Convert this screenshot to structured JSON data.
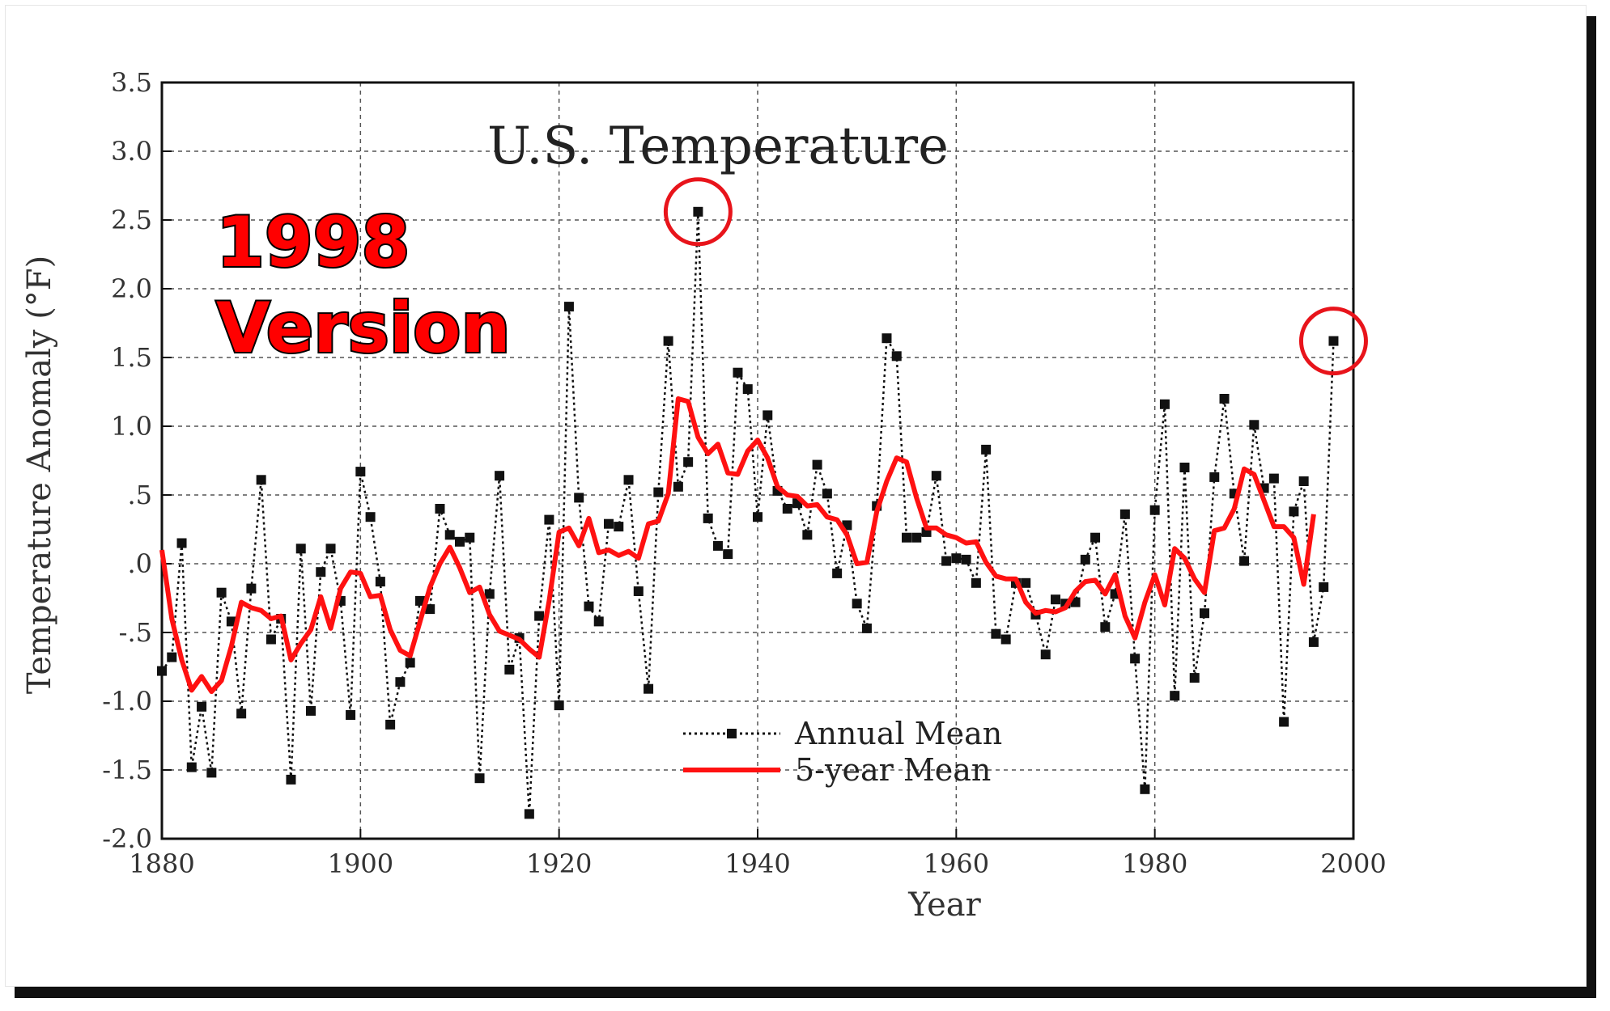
{
  "overlay": {
    "line1": "1998",
    "line2": "Version"
  },
  "chart_data": {
    "type": "line",
    "title": "U.S. Temperature",
    "xlabel": "Year",
    "ylabel": "Temperature Anomaly (°F)",
    "xlim": [
      1880,
      2000
    ],
    "ylim": [
      -2.0,
      3.5
    ],
    "x_ticks": [
      1880,
      1900,
      1920,
      1940,
      1960,
      1980,
      2000
    ],
    "x_tick_labels": [
      "1880",
      "1900",
      "1920",
      "1940",
      "1960",
      "1980",
      "2000"
    ],
    "y_ticks": [
      -2.0,
      -1.5,
      -1.0,
      -0.5,
      0.0,
      0.5,
      1.0,
      1.5,
      2.0,
      2.5,
      3.0,
      3.5
    ],
    "y_tick_labels": [
      "-2.0",
      "-1.5",
      "-1.0",
      "-.5",
      ".0",
      ".5",
      "1.0",
      "1.5",
      "2.0",
      "2.5",
      "3.0",
      "3.5"
    ],
    "grid": true,
    "legend_position": "bottom-center",
    "series": [
      {
        "name": "Annual Mean",
        "style": "dotted-with-square-markers",
        "color": "#111111",
        "x": [
          1880,
          1881,
          1882,
          1883,
          1884,
          1885,
          1886,
          1887,
          1888,
          1889,
          1890,
          1891,
          1892,
          1893,
          1894,
          1895,
          1896,
          1897,
          1898,
          1899,
          1900,
          1901,
          1902,
          1903,
          1904,
          1905,
          1906,
          1907,
          1908,
          1909,
          1910,
          1911,
          1912,
          1913,
          1914,
          1915,
          1916,
          1917,
          1918,
          1919,
          1920,
          1921,
          1922,
          1923,
          1924,
          1925,
          1926,
          1927,
          1928,
          1929,
          1930,
          1931,
          1932,
          1933,
          1934,
          1935,
          1936,
          1937,
          1938,
          1939,
          1940,
          1941,
          1942,
          1943,
          1944,
          1945,
          1946,
          1947,
          1948,
          1949,
          1950,
          1951,
          1952,
          1953,
          1954,
          1955,
          1956,
          1957,
          1958,
          1959,
          1960,
          1961,
          1962,
          1963,
          1964,
          1965,
          1966,
          1967,
          1968,
          1969,
          1970,
          1971,
          1972,
          1973,
          1974,
          1975,
          1976,
          1977,
          1978,
          1979,
          1980,
          1981,
          1982,
          1983,
          1984,
          1985,
          1986,
          1987,
          1988,
          1989,
          1990,
          1991,
          1992,
          1993,
          1994,
          1995,
          1996,
          1997,
          1998
        ],
        "values": [
          -0.78,
          -0.68,
          0.15,
          -1.48,
          -1.04,
          -1.52,
          -0.21,
          -0.42,
          -1.09,
          -0.18,
          0.61,
          -0.55,
          -0.4,
          -1.57,
          0.11,
          -1.07,
          -0.06,
          0.11,
          -0.27,
          -1.1,
          0.67,
          0.34,
          -0.13,
          -1.17,
          -0.86,
          -0.72,
          -0.27,
          -0.33,
          0.4,
          0.21,
          0.16,
          0.19,
          -1.56,
          -0.22,
          0.64,
          -0.77,
          -0.54,
          -1.82,
          -0.38,
          0.32,
          -1.03,
          1.87,
          0.48,
          -0.31,
          -0.42,
          0.29,
          0.27,
          0.61,
          -0.2,
          -0.91,
          0.52,
          1.62,
          0.56,
          0.74,
          2.56,
          0.33,
          0.13,
          0.07,
          1.39,
          1.27,
          0.34,
          1.08,
          0.53,
          0.4,
          0.44,
          0.21,
          0.72,
          0.51,
          -0.07,
          0.28,
          -0.29,
          -0.47,
          0.42,
          1.64,
          1.51,
          0.19,
          0.19,
          0.23,
          0.64,
          0.02,
          0.04,
          0.03,
          -0.14,
          0.83,
          -0.51,
          -0.55,
          -0.14,
          -0.14,
          -0.37,
          -0.66,
          -0.26,
          -0.29,
          -0.28,
          0.03,
          0.19,
          -0.46,
          -0.22,
          0.36,
          -0.69,
          -1.64,
          0.39,
          1.16,
          -0.96,
          0.7,
          -0.83,
          -0.36,
          0.63,
          1.2,
          0.51,
          0.02,
          1.01,
          0.55,
          0.62,
          -1.15,
          0.38,
          0.6,
          -0.57,
          -0.17,
          1.62
        ]
      },
      {
        "name": "5-year Mean",
        "style": "solid",
        "color": "#ff1111",
        "x": [
          1880,
          1881,
          1882,
          1883,
          1884,
          1885,
          1886,
          1887,
          1888,
          1889,
          1890,
          1891,
          1892,
          1893,
          1894,
          1895,
          1896,
          1897,
          1898,
          1899,
          1900,
          1901,
          1902,
          1903,
          1904,
          1905,
          1906,
          1907,
          1908,
          1909,
          1910,
          1911,
          1912,
          1913,
          1914,
          1915,
          1916,
          1917,
          1918,
          1919,
          1920,
          1921,
          1922,
          1923,
          1924,
          1925,
          1926,
          1927,
          1928,
          1929,
          1930,
          1931,
          1932,
          1933,
          1934,
          1935,
          1936,
          1937,
          1938,
          1939,
          1940,
          1941,
          1942,
          1943,
          1944,
          1945,
          1946,
          1947,
          1948,
          1949,
          1950,
          1951,
          1952,
          1953,
          1954,
          1955,
          1956,
          1957,
          1958,
          1959,
          1960,
          1961,
          1962,
          1963,
          1964,
          1965,
          1966,
          1967,
          1968,
          1969,
          1970,
          1971,
          1972,
          1973,
          1974,
          1975,
          1976,
          1977,
          1978,
          1979,
          1980,
          1981,
          1982,
          1983,
          1984,
          1985,
          1986,
          1987,
          1988,
          1989,
          1990,
          1991,
          1992,
          1993,
          1994,
          1995,
          1996
        ],
        "values": [
          0.1,
          -0.4,
          -0.7,
          -0.92,
          -0.82,
          -0.93,
          -0.85,
          -0.6,
          -0.28,
          -0.32,
          -0.34,
          -0.4,
          -0.38,
          -0.7,
          -0.58,
          -0.48,
          -0.24,
          -0.47,
          -0.18,
          -0.06,
          -0.07,
          -0.24,
          -0.23,
          -0.48,
          -0.63,
          -0.67,
          -0.42,
          -0.17,
          0.0,
          0.12,
          -0.03,
          -0.21,
          -0.17,
          -0.37,
          -0.49,
          -0.52,
          -0.55,
          -0.62,
          -0.68,
          -0.27,
          0.23,
          0.26,
          0.13,
          0.33,
          0.08,
          0.1,
          0.06,
          0.09,
          0.04,
          0.29,
          0.31,
          0.51,
          1.2,
          1.18,
          0.92,
          0.8,
          0.87,
          0.66,
          0.65,
          0.82,
          0.9,
          0.77,
          0.56,
          0.5,
          0.49,
          0.42,
          0.43,
          0.34,
          0.32,
          0.21,
          0.0,
          0.01,
          0.38,
          0.6,
          0.77,
          0.74,
          0.48,
          0.26,
          0.26,
          0.21,
          0.19,
          0.15,
          0.16,
          0.01,
          -0.09,
          -0.11,
          -0.11,
          -0.28,
          -0.36,
          -0.34,
          -0.35,
          -0.32,
          -0.2,
          -0.13,
          -0.12,
          -0.22,
          -0.08,
          -0.38,
          -0.54,
          -0.28,
          -0.08,
          -0.3,
          0.11,
          0.04,
          -0.11,
          -0.21,
          0.24,
          0.26,
          0.4,
          0.69,
          0.65,
          0.46,
          0.27,
          0.27,
          0.19,
          -0.15,
          0.36
        ]
      }
    ],
    "highlights": [
      {
        "x": 1934,
        "y": 2.56
      },
      {
        "x": 1998,
        "y": 1.62
      }
    ]
  }
}
